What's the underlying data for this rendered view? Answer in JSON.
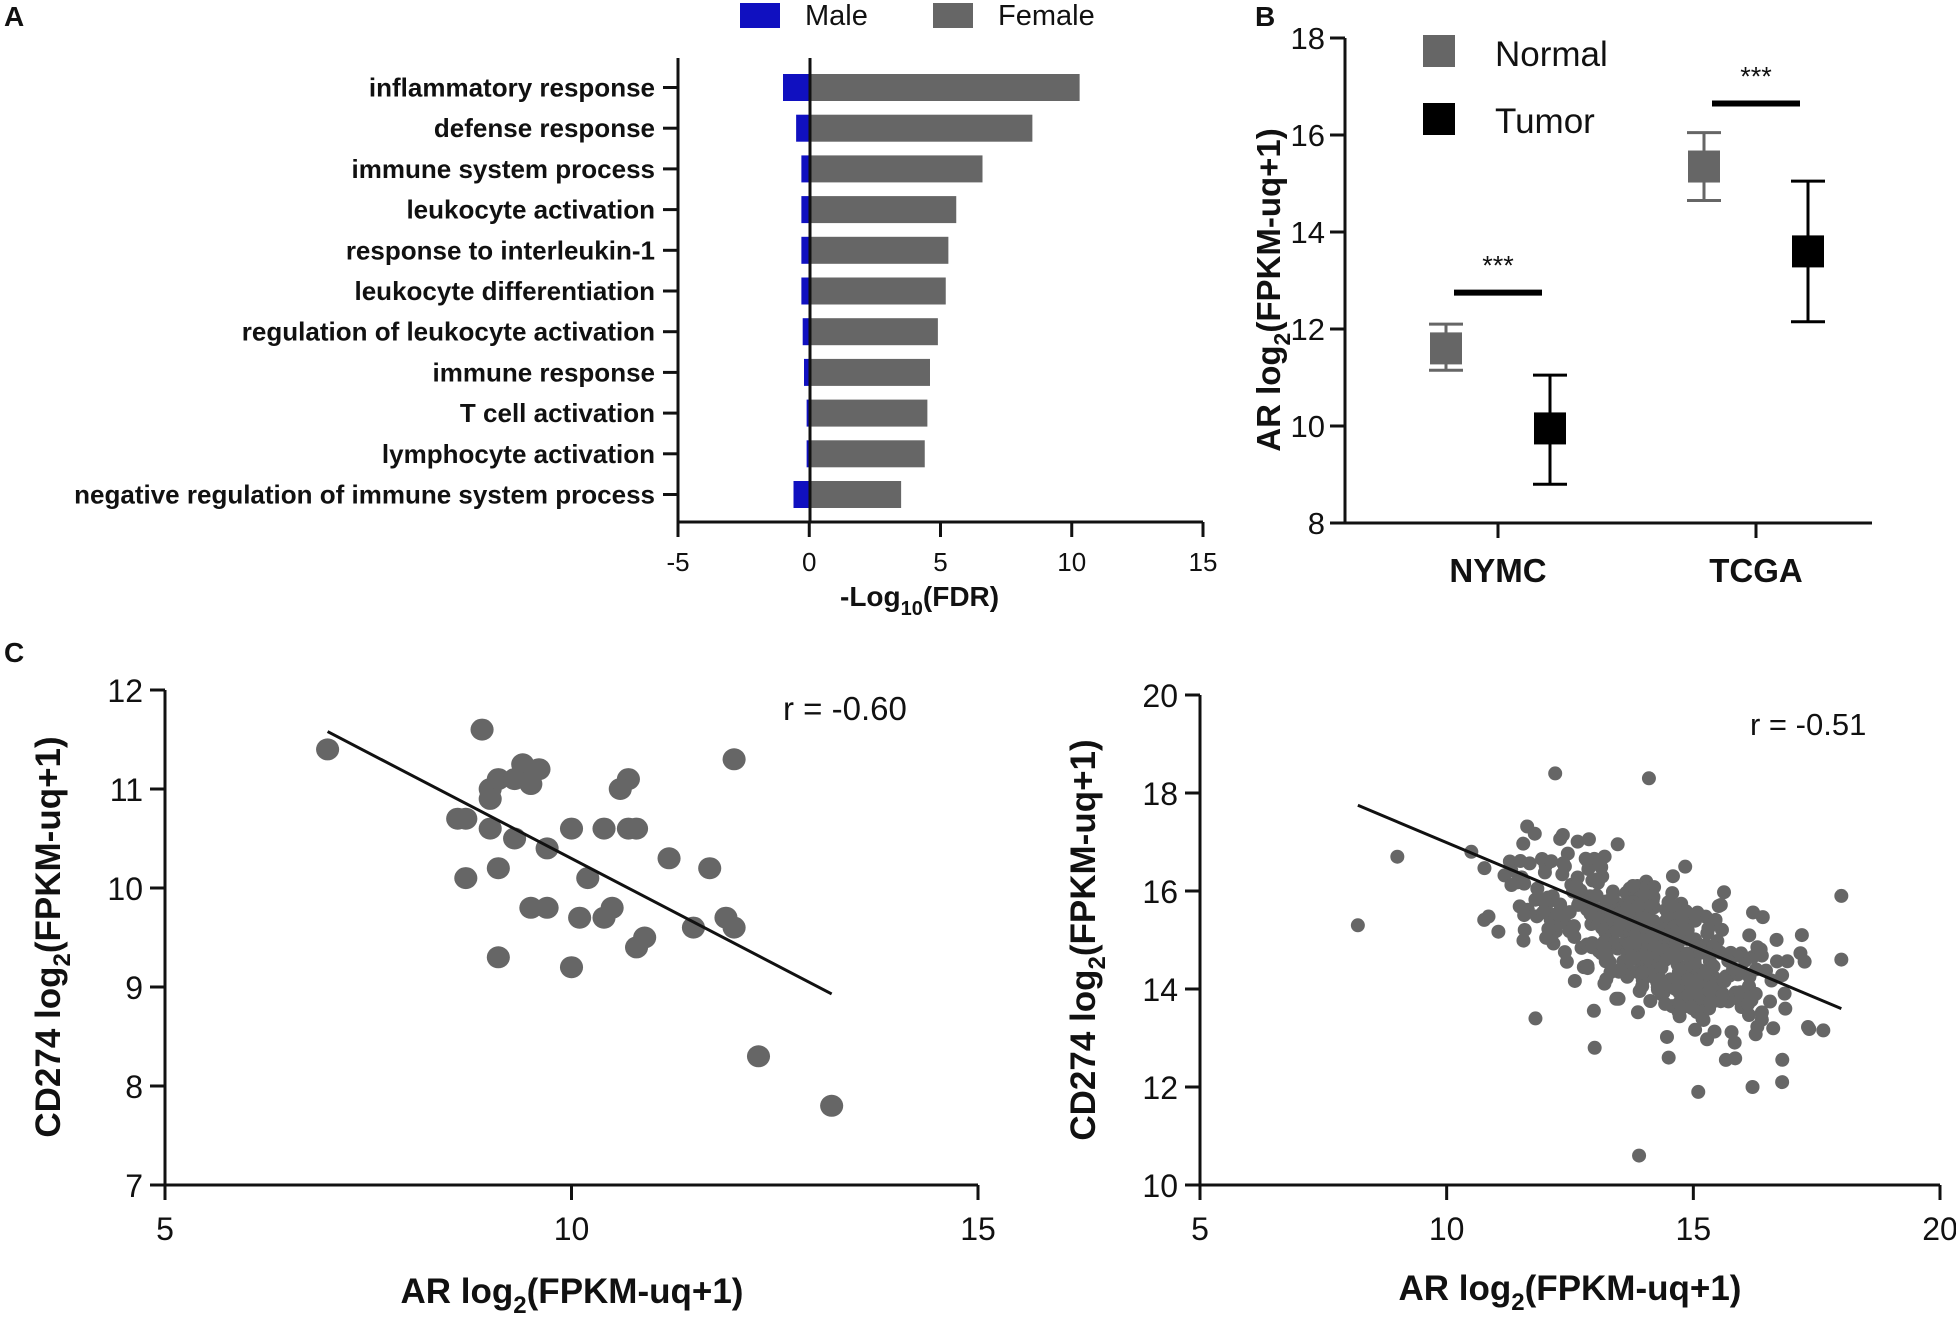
{
  "chart_data": [
    {
      "panel": "A",
      "type": "bar",
      "orientation": "horizontal",
      "legend": [
        "Male",
        "Female"
      ],
      "colors": {
        "Male": "#1010c0",
        "Female": "#666666"
      },
      "categories": [
        "inflammatory response",
        "defense response",
        "immune system process",
        "leukocyte activation",
        "response to interleukin-1",
        "leukocyte differentiation",
        "regulation of leukocyte activation",
        "immune response",
        "T cell activation",
        "lymphocyte activation",
        "negative regulation of immune system process"
      ],
      "series": [
        {
          "name": "Male",
          "values": [
            -1.0,
            -0.5,
            -0.3,
            -0.3,
            -0.3,
            -0.3,
            -0.25,
            -0.2,
            -0.1,
            -0.1,
            -0.6
          ]
        },
        {
          "name": "Female",
          "values": [
            10.3,
            8.5,
            6.6,
            5.6,
            5.3,
            5.2,
            4.9,
            4.6,
            4.5,
            4.4,
            3.5
          ]
        }
      ],
      "xlabel_main": "-Log",
      "xlabel_sub": "10",
      "xlabel_tail": "(FDR)",
      "xlim": [
        -5,
        15
      ],
      "xticks": [
        "-5",
        "0",
        "5",
        "10",
        "15"
      ]
    },
    {
      "panel": "B",
      "type": "scatter",
      "subtype": "mean-with-error-bars",
      "legend": [
        "Normal",
        "Tumor"
      ],
      "colors": {
        "Normal": "#666666",
        "Tumor": "#000000"
      },
      "categories": [
        "NYMC",
        "TCGA"
      ],
      "series": [
        {
          "name": "Normal",
          "mean": [
            11.6,
            15.35
          ],
          "upper": [
            12.1,
            16.05
          ],
          "lower": [
            11.15,
            14.65
          ]
        },
        {
          "name": "Tumor",
          "mean": [
            9.95,
            13.6
          ],
          "upper": [
            11.05,
            15.05
          ],
          "lower": [
            8.8,
            12.15
          ]
        }
      ],
      "significance": [
        {
          "group": "NYMC",
          "label": "***",
          "level": 12.75
        },
        {
          "group": "TCGA",
          "label": "***",
          "level": 16.65
        }
      ],
      "ylabel_main": "AR log",
      "ylabel_sub": "2",
      "ylabel_tail": "(FPKM-uq+1)",
      "ylim": [
        8,
        18
      ],
      "yticks": [
        "8",
        "10",
        "12",
        "14",
        "16",
        "18"
      ]
    },
    {
      "panel": "C-left",
      "type": "scatter",
      "annotation": "r = -0.60",
      "xlabel_main": "AR log",
      "xlabel_sub": "2",
      "xlabel_tail": "(FPKM-uq+1)",
      "ylabel_main": "CD274 log",
      "ylabel_sub": "2",
      "ylabel_tail": "(FPKM-uq+1)",
      "xlim": [
        5,
        15
      ],
      "ylim": [
        7,
        12
      ],
      "xticks": [
        "5",
        "10",
        "15"
      ],
      "yticks": [
        "7",
        "8",
        "9",
        "10",
        "11",
        "12"
      ],
      "fit_line": {
        "x": [
          7.0,
          13.2
        ],
        "y": [
          11.58,
          8.93
        ]
      },
      "points": [
        [
          7.0,
          11.4
        ],
        [
          8.9,
          11.6
        ],
        [
          12.0,
          11.3
        ],
        [
          13.2,
          7.8
        ],
        [
          12.3,
          8.3
        ],
        [
          9.4,
          11.25
        ],
        [
          9.1,
          11.1
        ],
        [
          9.0,
          11.0
        ],
        [
          9.3,
          11.1
        ],
        [
          9.6,
          11.2
        ],
        [
          9.5,
          11.05
        ],
        [
          10.7,
          11.1
        ],
        [
          10.7,
          10.6
        ],
        [
          8.6,
          10.7
        ],
        [
          8.7,
          10.7
        ],
        [
          9.0,
          10.6
        ],
        [
          9.3,
          10.5
        ],
        [
          9.7,
          10.4
        ],
        [
          10.0,
          10.6
        ],
        [
          10.4,
          10.6
        ],
        [
          10.8,
          10.6
        ],
        [
          11.2,
          10.3
        ],
        [
          11.7,
          10.2
        ],
        [
          8.7,
          10.1
        ],
        [
          9.1,
          10.2
        ],
        [
          10.2,
          10.1
        ],
        [
          9.5,
          9.8
        ],
        [
          9.7,
          9.8
        ],
        [
          10.1,
          9.7
        ],
        [
          10.4,
          9.7
        ],
        [
          10.5,
          9.8
        ],
        [
          10.9,
          9.5
        ],
        [
          10.8,
          9.4
        ],
        [
          11.5,
          9.6
        ],
        [
          11.9,
          9.7
        ],
        [
          12.0,
          9.6
        ],
        [
          9.1,
          9.3
        ],
        [
          10.0,
          9.2
        ],
        [
          9.0,
          10.9
        ],
        [
          10.6,
          11.0
        ]
      ]
    },
    {
      "panel": "C-right",
      "type": "scatter",
      "annotation": "r = -0.51",
      "xlabel_main": "AR log",
      "xlabel_sub": "2",
      "xlabel_tail": "(FPKM-uq+1)",
      "ylabel_main": "CD274 log",
      "ylabel_sub": "2",
      "ylabel_tail": "(FPKM-uq+1)",
      "xlim": [
        5,
        20
      ],
      "ylim": [
        10,
        20
      ],
      "xticks": [
        "5",
        "10",
        "15",
        "20"
      ],
      "yticks": [
        "10",
        "12",
        "14",
        "16",
        "18",
        "20"
      ],
      "fit_line": {
        "x": [
          8.2,
          18.0
        ],
        "y": [
          17.75,
          13.6
        ]
      },
      "points": [
        [
          8.2,
          15.3
        ],
        [
          9.0,
          16.7
        ],
        [
          13.9,
          10.6
        ],
        [
          12.2,
          18.4
        ],
        [
          14.1,
          18.3
        ],
        [
          18.0,
          15.9
        ],
        [
          18.0,
          14.6
        ],
        [
          17.2,
          15.1
        ],
        [
          10.5,
          16.8
        ],
        [
          16.8,
          12.1
        ],
        [
          15.1,
          11.9
        ],
        [
          16.2,
          12.0
        ],
        [
          11.8,
          13.4
        ],
        [
          13.0,
          12.8
        ],
        [
          14.5,
          12.6
        ]
      ]
    }
  ],
  "panel_labels": [
    "A",
    "B",
    "C"
  ]
}
